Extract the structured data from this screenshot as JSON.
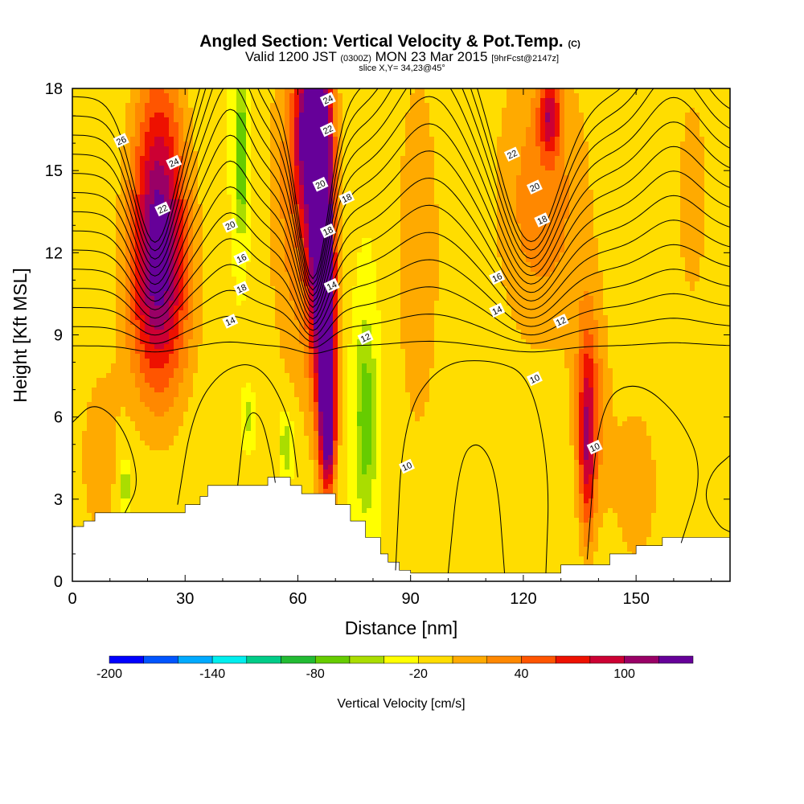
{
  "title": {
    "main": "Angled Section: Vertical Velocity & Pot.Temp.",
    "main_suffix": "(C)",
    "line2_a": "Valid 1200 JST",
    "line2_b": "(0300Z)",
    "line2_c": "MON 23 Mar 2015",
    "line2_d": "[9hrFcst@2147z]",
    "line3": "slice X,Y= 34,23@45°"
  },
  "chart_data": {
    "type": "heatmap",
    "xlabel": "Distance [nm]",
    "ylabel": "Height [Kft MSL]",
    "xlim": [
      0,
      175
    ],
    "ylim": [
      0,
      18
    ],
    "xticks": [
      0,
      30,
      60,
      90,
      120,
      150
    ],
    "yticks": [
      0,
      3,
      6,
      9,
      12,
      15,
      18
    ],
    "background_value": -20,
    "field_blobs": [
      {
        "x": 23,
        "y": 13.5,
        "sx": 5,
        "sy": 4,
        "v": 100
      },
      {
        "x": 23,
        "y": 10.5,
        "sx": 7,
        "sy": 3,
        "v": 45
      },
      {
        "x": 64,
        "y": 16.5,
        "sx": 3,
        "sy": 2,
        "v": 140
      },
      {
        "x": 66,
        "y": 12.5,
        "sx": 2.2,
        "sy": 4,
        "v": 140
      },
      {
        "x": 68,
        "y": 8.5,
        "sx": 1.5,
        "sy": 3,
        "v": 130
      },
      {
        "x": 68,
        "y": 5.5,
        "sx": 1.5,
        "sy": 1.5,
        "v": 80
      },
      {
        "x": 61,
        "y": 14,
        "sx": 6,
        "sy": 5,
        "v": 40
      },
      {
        "x": 45,
        "y": 15.5,
        "sx": 1.2,
        "sy": 2,
        "v": -90
      },
      {
        "x": 78,
        "y": 6,
        "sx": 2,
        "sy": 2.5,
        "v": -80
      },
      {
        "x": 57,
        "y": 5,
        "sx": 1.2,
        "sy": 0.8,
        "v": -70
      },
      {
        "x": 47,
        "y": 6,
        "sx": 0.8,
        "sy": 0.5,
        "v": -60
      },
      {
        "x": 14,
        "y": 3.5,
        "sx": 1,
        "sy": 0.6,
        "v": -70
      },
      {
        "x": 125,
        "y": 14,
        "sx": 9,
        "sy": 4,
        "v": 35
      },
      {
        "x": 127,
        "y": 17,
        "sx": 2,
        "sy": 1,
        "v": 70
      },
      {
        "x": 137,
        "y": 5,
        "sx": 1.6,
        "sy": 2.5,
        "v": 70
      },
      {
        "x": 138,
        "y": 6.5,
        "sx": 3.5,
        "sy": 3,
        "v": 30
      },
      {
        "x": 150,
        "y": 3.5,
        "sx": 5,
        "sy": 2.5,
        "v": 15
      },
      {
        "x": 92,
        "y": 12,
        "sx": 5,
        "sy": 6,
        "v": 15
      },
      {
        "x": 7,
        "y": 4.5,
        "sx": 4,
        "sy": 2.5,
        "v": 15
      },
      {
        "x": 165,
        "y": 14,
        "sx": 4,
        "sy": 4,
        "v": 10
      },
      {
        "x": 113,
        "y": 3,
        "sx": 8,
        "sy": 2,
        "v": -10
      }
    ],
    "terrain": [
      [
        0,
        2
      ],
      [
        3,
        2
      ],
      [
        3,
        2.2
      ],
      [
        6,
        2.2
      ],
      [
        6,
        2.5
      ],
      [
        30,
        2.5
      ],
      [
        30,
        2.8
      ],
      [
        34,
        2.8
      ],
      [
        34,
        3.1
      ],
      [
        36,
        3.1
      ],
      [
        36,
        3.5
      ],
      [
        52,
        3.5
      ],
      [
        52,
        3.8
      ],
      [
        58,
        3.8
      ],
      [
        58,
        3.5
      ],
      [
        61,
        3.5
      ],
      [
        61,
        3.2
      ],
      [
        70,
        3.2
      ],
      [
        70,
        2.8
      ],
      [
        74,
        2.8
      ],
      [
        74,
        2.2
      ],
      [
        78,
        2.2
      ],
      [
        78,
        1.6
      ],
      [
        82,
        1.6
      ],
      [
        82,
        1.0
      ],
      [
        84,
        1.0
      ],
      [
        84,
        0.7
      ],
      [
        87,
        0.7
      ],
      [
        87,
        0.4
      ],
      [
        90,
        0.4
      ],
      [
        90,
        0.3
      ],
      [
        130,
        0.3
      ],
      [
        130,
        0.6
      ],
      [
        143,
        0.6
      ],
      [
        143,
        1.0
      ],
      [
        150,
        1.0
      ],
      [
        150,
        1.3
      ],
      [
        157,
        1.3
      ],
      [
        157,
        1.6
      ],
      [
        175,
        1.6
      ]
    ],
    "theta_contours": [
      {
        "base": 8.6,
        "label": ""
      },
      {
        "base": 9.3,
        "label": ""
      },
      {
        "base": 10.0,
        "label": "14"
      },
      {
        "base": 10.7,
        "label": ""
      },
      {
        "base": 11.4,
        "label": "16"
      },
      {
        "base": 12.1,
        "label": ""
      },
      {
        "base": 12.8,
        "label": "18"
      },
      {
        "base": 13.5,
        "label": ""
      },
      {
        "base": 14.2,
        "label": "20"
      },
      {
        "base": 14.9,
        "label": ""
      },
      {
        "base": 15.6,
        "label": "22"
      },
      {
        "base": 16.3,
        "label": ""
      },
      {
        "base": 17.0,
        "label": "24"
      },
      {
        "base": 17.7,
        "label": ""
      }
    ],
    "low_contour_labels": [
      {
        "text": "10",
        "x": 89,
        "y": 4.2
      },
      {
        "text": "10",
        "x": 123,
        "y": 7.4
      },
      {
        "text": "10",
        "x": 139,
        "y": 4.9
      },
      {
        "text": "12",
        "x": 78,
        "y": 8.9
      },
      {
        "text": "12",
        "x": 130,
        "y": 9.5
      },
      {
        "text": "14",
        "x": 42,
        "y": 9.5
      },
      {
        "text": "14",
        "x": 113,
        "y": 9.9
      },
      {
        "text": "14",
        "x": 69,
        "y": 10.8
      },
      {
        "text": "16",
        "x": 113,
        "y": 11.1
      },
      {
        "text": "16",
        "x": 45,
        "y": 11.8
      },
      {
        "text": "18",
        "x": 68,
        "y": 12.8
      },
      {
        "text": "18",
        "x": 73,
        "y": 14.0
      },
      {
        "text": "18",
        "x": 45,
        "y": 10.7
      },
      {
        "text": "18",
        "x": 125,
        "y": 13.2
      },
      {
        "text": "20",
        "x": 42,
        "y": 13.0
      },
      {
        "text": "20",
        "x": 66,
        "y": 14.5
      },
      {
        "text": "20",
        "x": 123,
        "y": 14.4
      },
      {
        "text": "22",
        "x": 24,
        "y": 13.6
      },
      {
        "text": "22",
        "x": 68,
        "y": 16.5
      },
      {
        "text": "22",
        "x": 117,
        "y": 15.6
      },
      {
        "text": "24",
        "x": 27,
        "y": 15.3
      },
      {
        "text": "24",
        "x": 68,
        "y": 17.6
      },
      {
        "text": "26",
        "x": 13,
        "y": 16.1
      }
    ],
    "colorbar": {
      "label": "Vertical Velocity [cm/s]",
      "min": -200,
      "max": 140,
      "step": 20,
      "ticks": [
        -200,
        -140,
        -80,
        -20,
        40,
        100
      ],
      "colors": [
        "#0000ff",
        "#0055ff",
        "#00aaff",
        "#00eeee",
        "#00cc88",
        "#22bb33",
        "#66cc00",
        "#aadd00",
        "#ffff00",
        "#ffdd00",
        "#ffaa00",
        "#ff8800",
        "#ff5500",
        "#ee1100",
        "#cc0033",
        "#990066",
        "#660099"
      ]
    }
  }
}
